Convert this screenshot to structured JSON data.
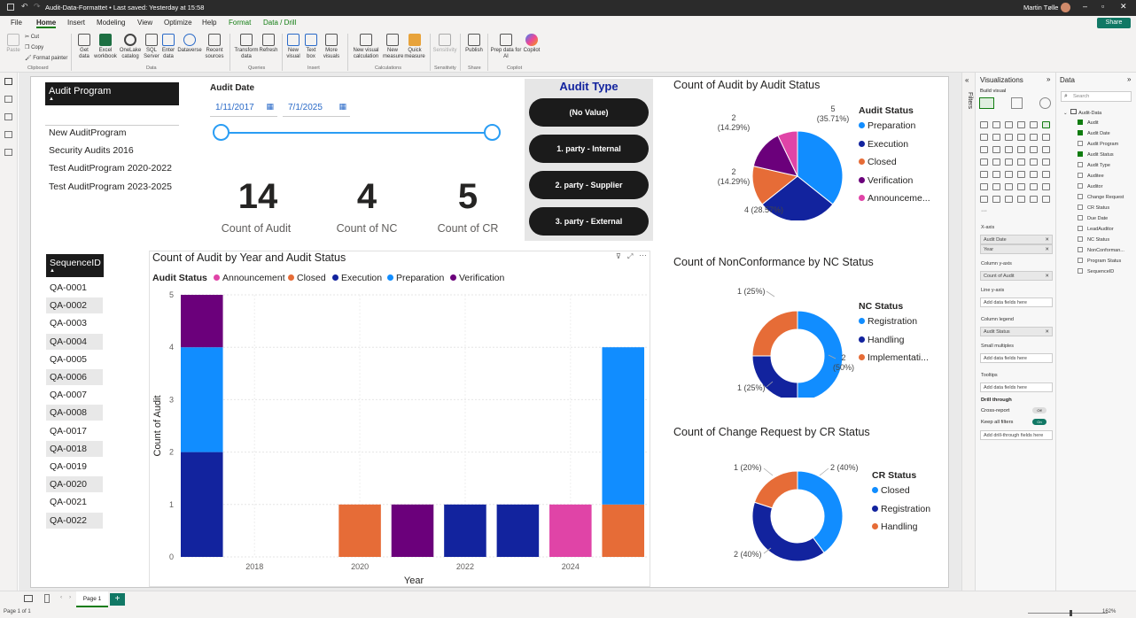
{
  "titlebar": {
    "title": "Audit-Data-Formattet • Last saved: Yesterday at 15:58",
    "user": "Martin Tølle"
  },
  "menu": [
    "File",
    "Home",
    "Insert",
    "Modeling",
    "View",
    "Optimize",
    "Help",
    "Format",
    "Data / Drill"
  ],
  "share_label": "Share",
  "ribbon": {
    "clipboard": {
      "paste": "Paste",
      "cut": "Cut",
      "copy": "Copy",
      "format_painter": "Format painter",
      "group": "Clipboard"
    },
    "data": {
      "get_data": "Get data",
      "excel": "Excel workbook",
      "onelake": "OneLake catalog",
      "sql": "SQL Server",
      "enter": "Enter data",
      "dataverse": "Dataverse",
      "recent": "Recent sources",
      "group": "Data"
    },
    "queries": {
      "transform": "Transform data",
      "refresh": "Refresh",
      "group": "Queries"
    },
    "insert": {
      "new_visual": "New visual",
      "text_box": "Text box",
      "more_visuals": "More visuals",
      "group": "Insert"
    },
    "calculations": {
      "new_calc": "New visual calculation",
      "new_measure": "New measure",
      "quick_measure": "Quick measure",
      "group": "Calculations"
    },
    "sensitivity": {
      "label": "Sensitivity",
      "group": "Sensitivity"
    },
    "share": {
      "publish": "Publish",
      "group": "Share"
    },
    "copilot": {
      "prep": "Prep data for AI",
      "copilot": "Copilot",
      "group": "Copilot"
    }
  },
  "audit_program_slicer": {
    "header": "Audit Program",
    "items": [
      "New AuditProgram",
      "Security Audits 2016",
      "Test AuditProgram 2020-2022",
      "Test AuditProgram 2023-2025"
    ]
  },
  "audit_date_slicer": {
    "label": "Audit Date",
    "start": "1/11/2017",
    "end": "7/1/2025"
  },
  "cards": [
    {
      "value": "14",
      "label": "Count of Audit",
      "color": "#12239e"
    },
    {
      "value": "4",
      "label": "Count of NC",
      "color": "#d64550"
    },
    {
      "value": "5",
      "label": "Count of CR",
      "color": "#4f3b8f"
    }
  ],
  "audit_type": {
    "title": "Audit Type",
    "items": [
      "(No Value)",
      "1. party - Internal",
      "2. party - Supplier",
      "3. party - External"
    ]
  },
  "sequence_slicer": {
    "header": "SequenceID",
    "items": [
      "QA-0001",
      "QA-0002",
      "QA-0003",
      "QA-0004",
      "QA-0005",
      "QA-0006",
      "QA-0007",
      "QA-0008",
      "QA-0017",
      "QA-0018",
      "QA-0019",
      "QA-0020",
      "QA-0021",
      "QA-0022"
    ]
  },
  "colors": {
    "Announcement": "#e044a7",
    "Closed": "#e66c37",
    "Execution": "#12239e",
    "Preparation": "#118dff",
    "Verification": "#6b007b",
    "Registration": "#118dff",
    "Handling": "#12239e",
    "Implementation": "#e66c37",
    "CR_Closed": "#118dff",
    "CR_Registration": "#12239e",
    "CR_Handling": "#e66c37"
  },
  "chart_data": [
    {
      "type": "bar",
      "stacked": true,
      "title": "Count of Audit by Year and Audit Status",
      "legend_title": "Audit Status",
      "xlabel": "Year",
      "ylabel": "Count of Audit",
      "ylim": [
        0,
        5
      ],
      "yticks": [
        "0",
        "1",
        "2",
        "3",
        "4",
        "5"
      ],
      "xticks": [
        "2018",
        "2020",
        "2022",
        "2024"
      ],
      "x": [
        2017,
        2020,
        2021,
        2022,
        2023,
        2024,
        2025
      ],
      "series": [
        {
          "name": "Announcement",
          "values": [
            0,
            0,
            0,
            0,
            0,
            1,
            0
          ]
        },
        {
          "name": "Closed",
          "values": [
            0,
            1,
            0,
            0,
            0,
            0,
            1
          ]
        },
        {
          "name": "Execution",
          "values": [
            2,
            0,
            0,
            1,
            1,
            0,
            0
          ]
        },
        {
          "name": "Preparation",
          "values": [
            2,
            0,
            0,
            0,
            0,
            0,
            3
          ]
        },
        {
          "name": "Verification",
          "values": [
            1,
            0,
            1,
            0,
            0,
            0,
            0
          ]
        }
      ]
    },
    {
      "type": "pie",
      "title": "Count of Audit by Audit Status",
      "legend_title": "Audit Status",
      "legend": [
        "Preparation",
        "Execution",
        "Closed",
        "Verification",
        "Announceme..."
      ],
      "slices": [
        {
          "name": "Preparation",
          "value": 5,
          "label": "5\n(35.71%)"
        },
        {
          "name": "Execution",
          "value": 4,
          "label": "4 (28.57%)"
        },
        {
          "name": "Closed",
          "value": 2,
          "label": "2\n(14.29%)"
        },
        {
          "name": "Verification",
          "value": 2,
          "label": "2\n(14.29%)"
        },
        {
          "name": "Announcement",
          "value": 1,
          "label": ""
        }
      ]
    },
    {
      "type": "pie",
      "donut": true,
      "title": "Count of NonConformance by NC Status",
      "legend_title": "NC Status",
      "legend": [
        "Registration",
        "Handling",
        "Implementati..."
      ],
      "slices": [
        {
          "name": "Registration",
          "value": 2,
          "label": "2\n(50%)"
        },
        {
          "name": "Handling",
          "value": 1,
          "label": "1 (25%)"
        },
        {
          "name": "Implementation",
          "value": 1,
          "label": "1 (25%)"
        }
      ]
    },
    {
      "type": "pie",
      "donut": true,
      "title": "Count of Change Request by CR Status",
      "legend_title": "CR Status",
      "legend": [
        "Closed",
        "Registration",
        "Handling"
      ],
      "slices": [
        {
          "name": "Closed",
          "value": 2,
          "label": "2 (40%)"
        },
        {
          "name": "Registration",
          "value": 2,
          "label": "2 (40%)"
        },
        {
          "name": "Handling",
          "value": 1,
          "label": "1 (20%)"
        }
      ]
    }
  ],
  "filters_label": "Filters",
  "viz_pane": {
    "title": "Visualizations",
    "build_visual": "Build visual",
    "wells": [
      {
        "label": "X-axis",
        "fields": [
          "Audit Date",
          "Year"
        ]
      },
      {
        "label": "Column y-axis",
        "fields": [
          "Count of Audit"
        ]
      },
      {
        "label": "Line y-axis",
        "placeholder": "Add data fields here"
      },
      {
        "label": "Column legend",
        "fields": [
          "Audit Status"
        ]
      },
      {
        "label": "Small multiples",
        "placeholder": "Add data fields here"
      },
      {
        "label": "Tooltips",
        "placeholder": "Add data fields here"
      }
    ],
    "drill_through": "Drill through",
    "cross_report": "Cross-report",
    "cross_report_state": "Off",
    "keep_filters": "Keep all filters",
    "keep_filters_state": "On",
    "drill_placeholder": "Add drill-through fields here"
  },
  "data_pane": {
    "title": "Data",
    "search_placeholder": "Search",
    "table": "Audit-Data",
    "fields": [
      {
        "name": "Audit",
        "checked": true
      },
      {
        "name": "Audit Date",
        "checked": true
      },
      {
        "name": "Audit Program",
        "checked": false
      },
      {
        "name": "Audit Status",
        "checked": true
      },
      {
        "name": "Audit Type",
        "checked": false
      },
      {
        "name": "Auditee",
        "checked": false
      },
      {
        "name": "Auditor",
        "checked": false
      },
      {
        "name": "Change Request",
        "checked": false
      },
      {
        "name": "CR Status",
        "checked": false
      },
      {
        "name": "Due Date",
        "checked": false
      },
      {
        "name": "LeadAuditor",
        "checked": false
      },
      {
        "name": "NC Status",
        "checked": false
      },
      {
        "name": "NonConforman...",
        "checked": false
      },
      {
        "name": "Program Status",
        "checked": false
      },
      {
        "name": "SequenceID",
        "checked": false
      }
    ]
  },
  "pages": {
    "current": "Page 1",
    "status": "Page 1 of 1",
    "zoom": "162%"
  }
}
